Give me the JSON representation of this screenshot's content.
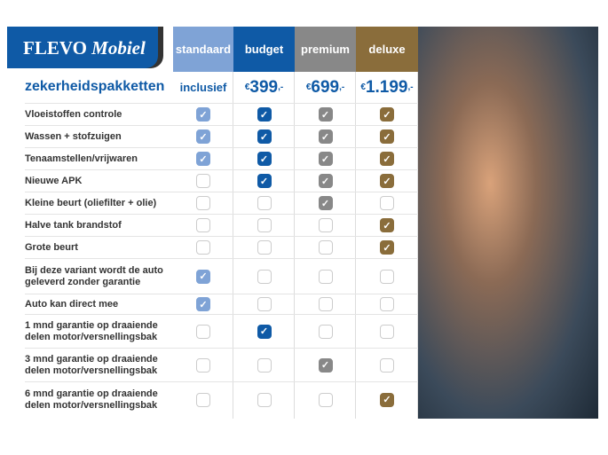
{
  "brand": {
    "name": "FLEVO",
    "name_italic": "Mobiel"
  },
  "title": "zekerheidspakketten",
  "packages": [
    {
      "name": "standaard",
      "price": "inclusief",
      "color": "#7fa3d6"
    },
    {
      "name": "budget",
      "currency": "€",
      "price": "399",
      "suffix": ",-",
      "color": "#0f5aa6"
    },
    {
      "name": "premium",
      "currency": "€",
      "price": "699",
      "suffix": ",-",
      "color": "#888888"
    },
    {
      "name": "deluxe",
      "currency": "€",
      "price": "1.199",
      "suffix": ",-",
      "color": "#8a6d3b"
    }
  ],
  "rows": [
    {
      "label": "Vloeistoffen controle",
      "checks": [
        true,
        true,
        true,
        true
      ]
    },
    {
      "label": "Wassen + stofzuigen",
      "checks": [
        true,
        true,
        true,
        true
      ]
    },
    {
      "label": "Tenaamstellen/vrijwaren",
      "checks": [
        true,
        true,
        true,
        true
      ]
    },
    {
      "label": "Nieuwe APK",
      "checks": [
        false,
        true,
        true,
        true
      ]
    },
    {
      "label": "Kleine beurt (oliefilter + olie)",
      "checks": [
        false,
        false,
        true,
        false
      ]
    },
    {
      "label": "Halve tank brandstof",
      "checks": [
        false,
        false,
        false,
        true
      ]
    },
    {
      "label": "Grote beurt",
      "checks": [
        false,
        false,
        false,
        true
      ]
    },
    {
      "label": "Bij deze variant wordt de auto geleverd zonder garantie",
      "checks": [
        true,
        false,
        false,
        false
      ]
    },
    {
      "label": "Auto kan direct mee",
      "checks": [
        true,
        false,
        false,
        false
      ]
    },
    {
      "label": "1 mnd garantie op draaiende delen motor/versnellingsbak",
      "checks": [
        false,
        true,
        false,
        false
      ]
    },
    {
      "label": "3 mnd garantie op draaiende delen motor/versnellingsbak",
      "checks": [
        false,
        false,
        true,
        false
      ]
    },
    {
      "label": "6 mnd garantie op draaiende delen motor/versnellingsbak",
      "checks": [
        false,
        false,
        false,
        true
      ]
    }
  ],
  "photo": {
    "description_icon": "couple-in-car-photo"
  }
}
